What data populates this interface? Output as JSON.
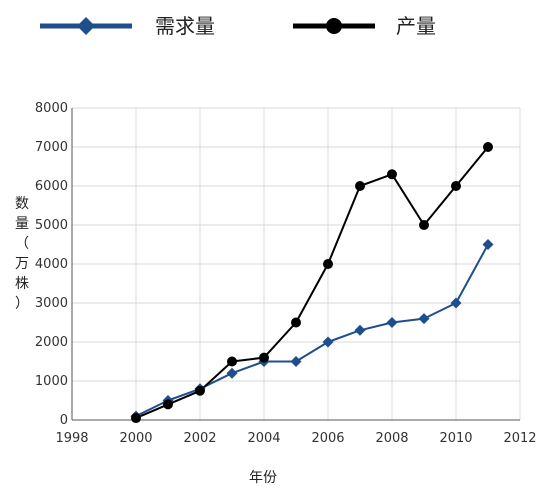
{
  "chart_data": {
    "type": "line",
    "title": "",
    "xlabel": "年份",
    "ylabel": "数量（万株）",
    "xlim": [
      1998,
      2012
    ],
    "ylim": [
      0,
      8000
    ],
    "xticks": [
      1998,
      2000,
      2002,
      2004,
      2006,
      2008,
      2010,
      2012
    ],
    "yticks": [
      0,
      1000,
      2000,
      3000,
      4000,
      5000,
      6000,
      7000,
      8000
    ],
    "grid": true,
    "legend_position": "top",
    "series": [
      {
        "name": "需求量",
        "color": "#1f4e8c",
        "marker": "diamond",
        "x": [
          2000,
          2001,
          2002,
          2003,
          2004,
          2005,
          2006,
          2007,
          2008,
          2009,
          2010,
          2011
        ],
        "y": [
          100,
          500,
          800,
          1200,
          1500,
          1500,
          2000,
          2300,
          2500,
          2600,
          3000,
          4500
        ]
      },
      {
        "name": "产量",
        "color": "#000000",
        "marker": "circle",
        "x": [
          2000,
          2001,
          2002,
          2003,
          2004,
          2005,
          2006,
          2007,
          2008,
          2009,
          2010,
          2011
        ],
        "y": [
          50,
          400,
          750,
          1500,
          1600,
          2500,
          4000,
          6000,
          6300,
          5000,
          6000,
          7000
        ]
      }
    ]
  }
}
